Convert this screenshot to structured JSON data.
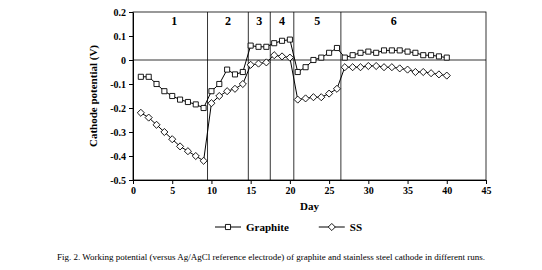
{
  "chart_data": {
    "type": "line",
    "x_label": "Day",
    "y_label": "Cathode potential (V)",
    "caption": "Fig. 2. Working potential (versus Ag/AgCl reference electrode) of graphite and stainless steel cathode in different runs.",
    "x": [
      1,
      2,
      3,
      4,
      5,
      6,
      7,
      8,
      9,
      10,
      11,
      12,
      13,
      14,
      15,
      16,
      17,
      18,
      19,
      20,
      21,
      22,
      23,
      24,
      25,
      26,
      27,
      28,
      29,
      30,
      31,
      32,
      33,
      34,
      35,
      36,
      37,
      38,
      39,
      40
    ],
    "series": [
      {
        "name": "Graphite",
        "color": "#000000",
        "marker": "square",
        "line_style": "solid",
        "values": [
          -0.07,
          -0.07,
          -0.1,
          -0.13,
          -0.15,
          -0.165,
          -0.175,
          -0.185,
          -0.2,
          -0.13,
          -0.1,
          -0.04,
          -0.06,
          -0.05,
          0.06,
          0.055,
          0.055,
          0.07,
          0.08,
          0.085,
          -0.05,
          -0.03,
          0.0,
          0.01,
          0.03,
          0.05,
          0.01,
          0.02,
          0.03,
          0.035,
          0.03,
          0.04,
          0.04,
          0.04,
          0.035,
          0.03,
          0.02,
          0.02,
          0.015,
          0.01
        ]
      },
      {
        "name": "SS",
        "color": "#000000",
        "marker": "diamond",
        "line_style": "solid",
        "values": [
          -0.22,
          -0.24,
          -0.27,
          -0.3,
          -0.33,
          -0.36,
          -0.38,
          -0.4,
          -0.42,
          -0.18,
          -0.15,
          -0.13,
          -0.12,
          -0.1,
          -0.02,
          -0.015,
          -0.01,
          0.02,
          0.015,
          0.01,
          -0.165,
          -0.16,
          -0.155,
          -0.155,
          -0.14,
          -0.12,
          -0.03,
          -0.03,
          -0.03,
          -0.025,
          -0.025,
          -0.03,
          -0.03,
          -0.035,
          -0.04,
          -0.05,
          -0.05,
          -0.055,
          -0.06,
          -0.065
        ]
      }
    ],
    "runs": [
      "1",
      "2",
      "3",
      "4",
      "5",
      "6"
    ],
    "run_boundaries": [
      9.5,
      14.7,
      17.5,
      20.5,
      26.5
    ],
    "xlim": [
      0,
      45
    ],
    "xticks": [
      0,
      5,
      10,
      15,
      20,
      25,
      30,
      35,
      40,
      45
    ],
    "ylim": [
      -0.5,
      0.2
    ],
    "yticks": [
      -0.5,
      -0.4,
      -0.3,
      -0.2,
      -0.1,
      0,
      0.1,
      0.2
    ],
    "grid": false,
    "legend": "bottom"
  }
}
